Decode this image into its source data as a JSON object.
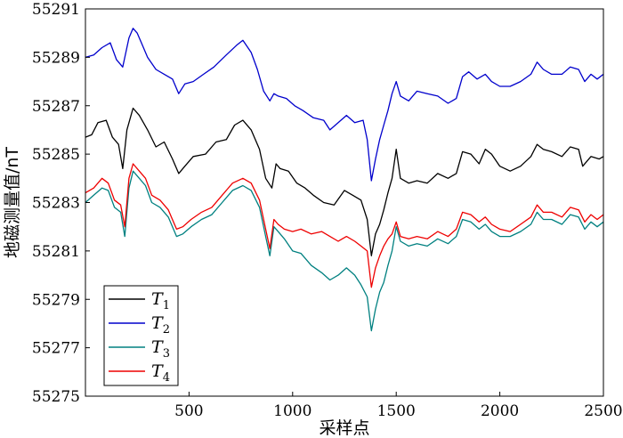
{
  "chart_data": {
    "type": "line",
    "xlabel": "采样点",
    "ylabel": "地磁测量值/nT",
    "xlim": [
      0,
      2500
    ],
    "ylim": [
      55275,
      55291
    ],
    "xticks": [
      500,
      1000,
      1500,
      2000,
      2500
    ],
    "yticks": [
      55275,
      55277,
      55279,
      55281,
      55283,
      55285,
      55287,
      55289,
      55291
    ],
    "legend_position": "bottom-left",
    "grid": false,
    "series": [
      {
        "name": "T",
        "subscript": "1",
        "color": "#000000",
        "points": [
          [
            0,
            55285.7
          ],
          [
            30,
            55285.8
          ],
          [
            60,
            55286.3
          ],
          [
            100,
            55286.4
          ],
          [
            130,
            55285.7
          ],
          [
            160,
            55285.4
          ],
          [
            180,
            55284.4
          ],
          [
            200,
            55286.0
          ],
          [
            230,
            55286.9
          ],
          [
            260,
            55286.6
          ],
          [
            300,
            55286.0
          ],
          [
            340,
            55285.3
          ],
          [
            380,
            55285.5
          ],
          [
            420,
            55284.8
          ],
          [
            450,
            55284.2
          ],
          [
            480,
            55284.5
          ],
          [
            520,
            55284.9
          ],
          [
            580,
            55285.0
          ],
          [
            630,
            55285.5
          ],
          [
            680,
            55285.6
          ],
          [
            720,
            55286.2
          ],
          [
            760,
            55286.4
          ],
          [
            800,
            55286.0
          ],
          [
            840,
            55285.2
          ],
          [
            870,
            55284.0
          ],
          [
            900,
            55283.6
          ],
          [
            920,
            55284.6
          ],
          [
            940,
            55284.4
          ],
          [
            980,
            55284.3
          ],
          [
            1020,
            55283.8
          ],
          [
            1060,
            55283.6
          ],
          [
            1100,
            55283.3
          ],
          [
            1150,
            55283.0
          ],
          [
            1200,
            55282.9
          ],
          [
            1250,
            55283.5
          ],
          [
            1290,
            55283.3
          ],
          [
            1330,
            55283.1
          ],
          [
            1360,
            55282.3
          ],
          [
            1380,
            55280.8
          ],
          [
            1400,
            55281.7
          ],
          [
            1420,
            55282.1
          ],
          [
            1440,
            55282.7
          ],
          [
            1460,
            55283.4
          ],
          [
            1480,
            55284.0
          ],
          [
            1500,
            55285.2
          ],
          [
            1520,
            55284.0
          ],
          [
            1560,
            55283.8
          ],
          [
            1600,
            55283.9
          ],
          [
            1650,
            55283.8
          ],
          [
            1700,
            55284.2
          ],
          [
            1750,
            55284.0
          ],
          [
            1790,
            55284.2
          ],
          [
            1820,
            55285.1
          ],
          [
            1860,
            55285.0
          ],
          [
            1900,
            55284.6
          ],
          [
            1930,
            55285.2
          ],
          [
            1960,
            55285.0
          ],
          [
            2000,
            55284.5
          ],
          [
            2050,
            55284.3
          ],
          [
            2100,
            55284.5
          ],
          [
            2150,
            55284.9
          ],
          [
            2180,
            55285.4
          ],
          [
            2210,
            55285.2
          ],
          [
            2250,
            55285.1
          ],
          [
            2300,
            55284.9
          ],
          [
            2340,
            55285.3
          ],
          [
            2380,
            55285.2
          ],
          [
            2400,
            55284.5
          ],
          [
            2440,
            55284.9
          ],
          [
            2480,
            55284.8
          ],
          [
            2500,
            55284.9
          ]
        ]
      },
      {
        "name": "T",
        "subscript": "2",
        "color": "#0000cc",
        "points": [
          [
            0,
            55289.0
          ],
          [
            40,
            55289.1
          ],
          [
            80,
            55289.4
          ],
          [
            120,
            55289.6
          ],
          [
            150,
            55288.9
          ],
          [
            180,
            55288.6
          ],
          [
            210,
            55289.8
          ],
          [
            230,
            55290.2
          ],
          [
            250,
            55290.0
          ],
          [
            270,
            55289.6
          ],
          [
            300,
            55289.0
          ],
          [
            340,
            55288.5
          ],
          [
            380,
            55288.3
          ],
          [
            420,
            55288.1
          ],
          [
            450,
            55287.5
          ],
          [
            480,
            55287.9
          ],
          [
            520,
            55288.0
          ],
          [
            570,
            55288.3
          ],
          [
            620,
            55288.6
          ],
          [
            680,
            55289.1
          ],
          [
            730,
            55289.5
          ],
          [
            760,
            55289.7
          ],
          [
            800,
            55289.2
          ],
          [
            830,
            55288.5
          ],
          [
            860,
            55287.6
          ],
          [
            890,
            55287.2
          ],
          [
            910,
            55287.5
          ],
          [
            930,
            55287.4
          ],
          [
            970,
            55287.3
          ],
          [
            1010,
            55287.0
          ],
          [
            1050,
            55286.8
          ],
          [
            1100,
            55286.5
          ],
          [
            1150,
            55286.4
          ],
          [
            1180,
            55286.0
          ],
          [
            1220,
            55286.3
          ],
          [
            1260,
            55286.6
          ],
          [
            1300,
            55286.3
          ],
          [
            1340,
            55286.4
          ],
          [
            1360,
            55285.6
          ],
          [
            1380,
            55283.9
          ],
          [
            1400,
            55284.8
          ],
          [
            1420,
            55285.6
          ],
          [
            1440,
            55286.2
          ],
          [
            1460,
            55286.8
          ],
          [
            1480,
            55287.5
          ],
          [
            1500,
            55288.0
          ],
          [
            1520,
            55287.4
          ],
          [
            1560,
            55287.2
          ],
          [
            1600,
            55287.6
          ],
          [
            1650,
            55287.5
          ],
          [
            1700,
            55287.4
          ],
          [
            1750,
            55287.1
          ],
          [
            1790,
            55287.3
          ],
          [
            1820,
            55288.2
          ],
          [
            1850,
            55288.4
          ],
          [
            1890,
            55288.1
          ],
          [
            1930,
            55288.3
          ],
          [
            1960,
            55288.0
          ],
          [
            2000,
            55287.8
          ],
          [
            2050,
            55287.8
          ],
          [
            2100,
            55288.0
          ],
          [
            2150,
            55288.3
          ],
          [
            2180,
            55288.8
          ],
          [
            2210,
            55288.5
          ],
          [
            2250,
            55288.3
          ],
          [
            2300,
            55288.3
          ],
          [
            2340,
            55288.6
          ],
          [
            2380,
            55288.5
          ],
          [
            2410,
            55288.0
          ],
          [
            2440,
            55288.3
          ],
          [
            2470,
            55288.1
          ],
          [
            2500,
            55288.3
          ]
        ]
      },
      {
        "name": "T",
        "subscript": "3",
        "color": "#008080",
        "points": [
          [
            0,
            55283.0
          ],
          [
            40,
            55283.3
          ],
          [
            80,
            55283.6
          ],
          [
            110,
            55283.5
          ],
          [
            140,
            55282.8
          ],
          [
            170,
            55282.6
          ],
          [
            190,
            55281.6
          ],
          [
            210,
            55283.6
          ],
          [
            230,
            55284.3
          ],
          [
            260,
            55284.0
          ],
          [
            290,
            55283.7
          ],
          [
            320,
            55283.0
          ],
          [
            360,
            55282.8
          ],
          [
            400,
            55282.4
          ],
          [
            440,
            55281.6
          ],
          [
            470,
            55281.7
          ],
          [
            510,
            55282.0
          ],
          [
            560,
            55282.3
          ],
          [
            610,
            55282.5
          ],
          [
            660,
            55283.0
          ],
          [
            710,
            55283.5
          ],
          [
            760,
            55283.7
          ],
          [
            800,
            55283.5
          ],
          [
            840,
            55282.8
          ],
          [
            870,
            55281.6
          ],
          [
            890,
            55280.8
          ],
          [
            910,
            55282.0
          ],
          [
            930,
            55281.8
          ],
          [
            960,
            55281.5
          ],
          [
            1000,
            55281.0
          ],
          [
            1040,
            55280.9
          ],
          [
            1090,
            55280.4
          ],
          [
            1140,
            55280.1
          ],
          [
            1180,
            55279.8
          ],
          [
            1220,
            55280.0
          ],
          [
            1260,
            55280.3
          ],
          [
            1300,
            55280.0
          ],
          [
            1330,
            55279.6
          ],
          [
            1360,
            55279.1
          ],
          [
            1380,
            55277.7
          ],
          [
            1400,
            55278.6
          ],
          [
            1420,
            55279.3
          ],
          [
            1440,
            55279.7
          ],
          [
            1460,
            55280.4
          ],
          [
            1480,
            55281.0
          ],
          [
            1500,
            55282.0
          ],
          [
            1520,
            55281.4
          ],
          [
            1560,
            55281.2
          ],
          [
            1600,
            55281.3
          ],
          [
            1650,
            55281.2
          ],
          [
            1700,
            55281.5
          ],
          [
            1750,
            55281.3
          ],
          [
            1790,
            55281.6
          ],
          [
            1820,
            55282.3
          ],
          [
            1860,
            55282.2
          ],
          [
            1900,
            55281.9
          ],
          [
            1930,
            55282.1
          ],
          [
            1960,
            55281.8
          ],
          [
            2000,
            55281.6
          ],
          [
            2050,
            55281.6
          ],
          [
            2100,
            55281.8
          ],
          [
            2150,
            55282.1
          ],
          [
            2180,
            55282.6
          ],
          [
            2210,
            55282.3
          ],
          [
            2250,
            55282.3
          ],
          [
            2300,
            55282.1
          ],
          [
            2340,
            55282.5
          ],
          [
            2380,
            55282.4
          ],
          [
            2410,
            55281.9
          ],
          [
            2440,
            55282.2
          ],
          [
            2470,
            55282.0
          ],
          [
            2500,
            55282.2
          ]
        ]
      },
      {
        "name": "T",
        "subscript": "4",
        "color": "#ee0000",
        "points": [
          [
            0,
            55283.4
          ],
          [
            40,
            55283.6
          ],
          [
            80,
            55284.0
          ],
          [
            110,
            55283.8
          ],
          [
            140,
            55283.1
          ],
          [
            170,
            55282.9
          ],
          [
            190,
            55282.0
          ],
          [
            210,
            55284.0
          ],
          [
            230,
            55284.6
          ],
          [
            260,
            55284.3
          ],
          [
            290,
            55284.0
          ],
          [
            320,
            55283.3
          ],
          [
            360,
            55283.1
          ],
          [
            400,
            55282.7
          ],
          [
            440,
            55281.9
          ],
          [
            470,
            55282.0
          ],
          [
            510,
            55282.3
          ],
          [
            560,
            55282.6
          ],
          [
            610,
            55282.8
          ],
          [
            660,
            55283.3
          ],
          [
            710,
            55283.8
          ],
          [
            760,
            55284.0
          ],
          [
            800,
            55283.8
          ],
          [
            840,
            55283.1
          ],
          [
            870,
            55281.9
          ],
          [
            890,
            55281.1
          ],
          [
            910,
            55282.3
          ],
          [
            930,
            55282.1
          ],
          [
            960,
            55281.9
          ],
          [
            1000,
            55281.8
          ],
          [
            1040,
            55281.9
          ],
          [
            1090,
            55281.7
          ],
          [
            1140,
            55281.8
          ],
          [
            1180,
            55281.6
          ],
          [
            1220,
            55281.4
          ],
          [
            1260,
            55281.6
          ],
          [
            1300,
            55281.4
          ],
          [
            1330,
            55281.2
          ],
          [
            1360,
            55281.0
          ],
          [
            1380,
            55279.5
          ],
          [
            1400,
            55280.3
          ],
          [
            1420,
            55280.8
          ],
          [
            1440,
            55281.2
          ],
          [
            1460,
            55281.5
          ],
          [
            1480,
            55281.7
          ],
          [
            1500,
            55282.2
          ],
          [
            1520,
            55281.6
          ],
          [
            1560,
            55281.5
          ],
          [
            1600,
            55281.6
          ],
          [
            1650,
            55281.5
          ],
          [
            1700,
            55281.8
          ],
          [
            1750,
            55281.6
          ],
          [
            1790,
            55281.9
          ],
          [
            1820,
            55282.6
          ],
          [
            1860,
            55282.5
          ],
          [
            1900,
            55282.2
          ],
          [
            1930,
            55282.4
          ],
          [
            1960,
            55282.1
          ],
          [
            2000,
            55281.9
          ],
          [
            2050,
            55281.8
          ],
          [
            2100,
            55282.1
          ],
          [
            2150,
            55282.4
          ],
          [
            2180,
            55282.9
          ],
          [
            2210,
            55282.6
          ],
          [
            2250,
            55282.6
          ],
          [
            2300,
            55282.4
          ],
          [
            2340,
            55282.8
          ],
          [
            2380,
            55282.7
          ],
          [
            2410,
            55282.2
          ],
          [
            2440,
            55282.5
          ],
          [
            2470,
            55282.3
          ],
          [
            2500,
            55282.5
          ]
        ]
      }
    ]
  }
}
